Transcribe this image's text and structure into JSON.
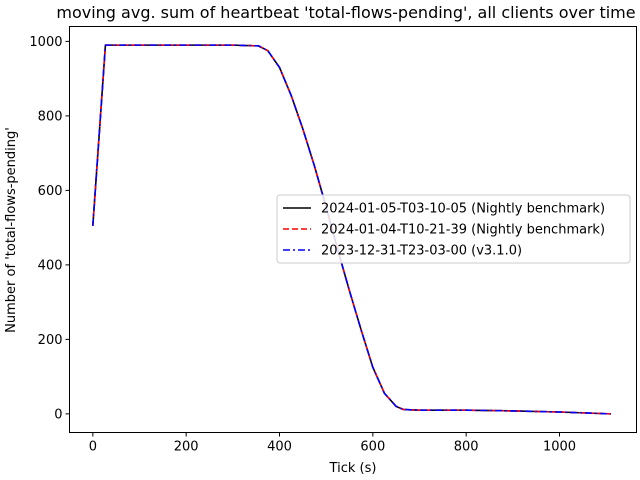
{
  "chart_data": {
    "type": "line",
    "title": "moving avg. sum of heartbeat 'total-flows-pending', all clients over time",
    "xlabel": "Tick (s)",
    "ylabel": "Number of 'total-flows-pending'",
    "xlim": [
      -50,
      1165
    ],
    "ylim": [
      -50,
      1040
    ],
    "xticks": [
      0,
      200,
      400,
      600,
      800,
      1000
    ],
    "yticks": [
      0,
      200,
      400,
      600,
      800,
      1000
    ],
    "legend_position": "center-right",
    "grid": false,
    "series": [
      {
        "name": "2024-01-05-T03-10-05 (Nightly benchmark)",
        "color": "#000000",
        "style": "solid",
        "x": [
          0,
          27,
          100,
          200,
          300,
          355,
          375,
          400,
          425,
          450,
          475,
          500,
          525,
          550,
          575,
          600,
          625,
          650,
          665,
          680,
          700,
          800,
          900,
          1000,
          1110
        ],
        "y": [
          505,
          990,
          990,
          990,
          990,
          988,
          975,
          930,
          855,
          765,
          665,
          555,
          440,
          330,
          225,
          125,
          55,
          20,
          12,
          11,
          10,
          10,
          8,
          5,
          0
        ]
      },
      {
        "name": "2024-01-04-T10-21-39 (Nightly benchmark)",
        "color": "#ff0000",
        "style": "dashed",
        "x": [
          0,
          27,
          100,
          200,
          300,
          355,
          375,
          400,
          425,
          450,
          475,
          500,
          525,
          550,
          575,
          600,
          625,
          650,
          665,
          680,
          700,
          800,
          900,
          1000,
          1110
        ],
        "y": [
          505,
          990,
          990,
          990,
          990,
          988,
          975,
          930,
          855,
          765,
          665,
          555,
          440,
          330,
          225,
          125,
          55,
          20,
          12,
          11,
          10,
          10,
          8,
          5,
          0
        ]
      },
      {
        "name": "2023-12-31-T23-03-00 (v3.1.0)",
        "color": "#0000ff",
        "style": "dashdot",
        "x": [
          0,
          27,
          100,
          200,
          300,
          355,
          375,
          400,
          425,
          450,
          475,
          500,
          525,
          550,
          575,
          600,
          625,
          650,
          665,
          680,
          700,
          800,
          900,
          1000,
          1110
        ],
        "y": [
          505,
          990,
          990,
          990,
          990,
          988,
          975,
          930,
          855,
          765,
          665,
          555,
          440,
          330,
          225,
          125,
          55,
          20,
          12,
          11,
          10,
          10,
          8,
          5,
          0
        ]
      }
    ]
  }
}
